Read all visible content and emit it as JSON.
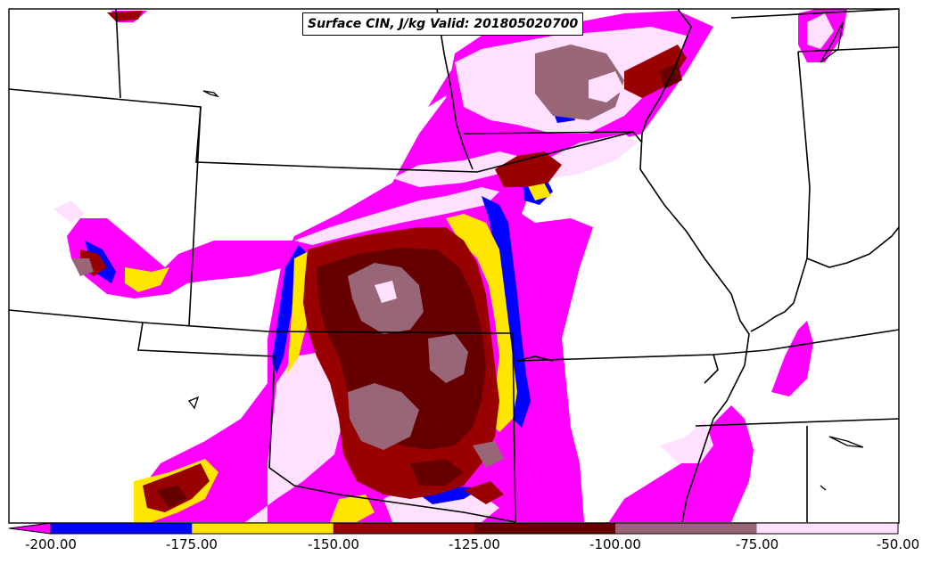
{
  "map": {
    "title": "Surface CIN, J/kg Valid: 201805020700",
    "field": "Surface CIN",
    "units": "J/kg",
    "valid_time": "201805020700"
  },
  "colorbar": {
    "ticks": [
      "-200.00",
      "-175.00",
      "-150.00",
      "-125.00",
      "-100.00",
      "-75.00",
      "-50.00"
    ],
    "bins": [
      {
        "range": [
          -200,
          -175
        ],
        "color": "#0000ff"
      },
      {
        "range": [
          -175,
          -150
        ],
        "color": "#ffe600"
      },
      {
        "range": [
          -150,
          -125
        ],
        "color": "#990000"
      },
      {
        "range": [
          -125,
          -100
        ],
        "color": "#660000"
      },
      {
        "range": [
          -100,
          -75
        ],
        "color": "#996677"
      },
      {
        "range": [
          -75,
          -50
        ],
        "color": "#ffe0ff"
      }
    ],
    "under_color": "#ff00ff",
    "extend": "min"
  },
  "colors": {
    "magenta": "#ff00ff",
    "blue": "#0000ff",
    "yellow": "#ffe600",
    "red": "#990000",
    "darkred": "#660000",
    "mauve": "#996677",
    "pink": "#ffe0ff",
    "boundary": "#000000",
    "background": "#ffffff"
  }
}
